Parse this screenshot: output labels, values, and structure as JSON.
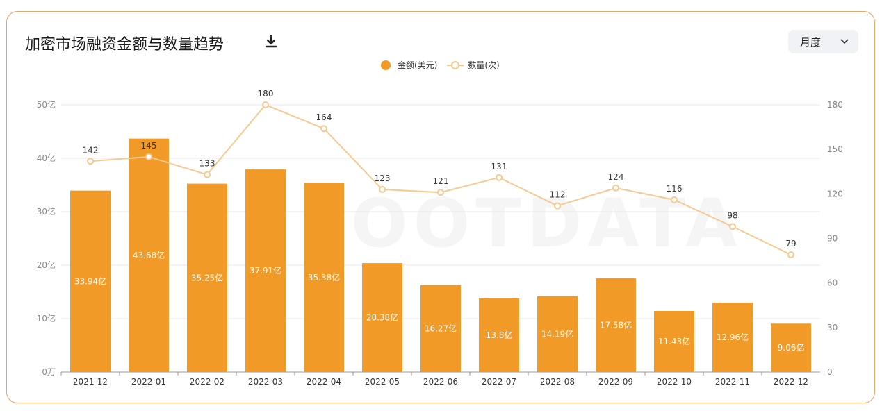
{
  "header": {
    "title": "加密市场融资金额与数量趋势",
    "download_icon": "download-icon",
    "period_select": {
      "value": "月度",
      "icon": "chevron-down-icon"
    }
  },
  "colors": {
    "bar": "#f29a27",
    "line": "#f7c98f",
    "accent": "#f0a060"
  },
  "watermark": "FOOTDATA",
  "chart_data": {
    "type": "bar+line",
    "categories": [
      "2021-12",
      "2022-01",
      "2022-02",
      "2022-03",
      "2022-04",
      "2022-05",
      "2022-06",
      "2022-07",
      "2022-08",
      "2022-09",
      "2022-10",
      "2022-11",
      "2022-12"
    ],
    "series": [
      {
        "name": "金额(美元)",
        "type": "bar",
        "axis": "left",
        "unit": "亿",
        "values": [
          33.94,
          43.68,
          35.25,
          37.91,
          35.38,
          20.38,
          16.27,
          13.8,
          14.19,
          17.58,
          11.43,
          12.96,
          9.06
        ],
        "labels": [
          "33.94亿",
          "43.68亿",
          "35.25亿",
          "37.91亿",
          "35.38亿",
          "20.38亿",
          "16.27亿",
          "13.8亿",
          "14.19亿",
          "17.58亿",
          "11.43亿",
          "12.96亿",
          "9.06亿"
        ]
      },
      {
        "name": "数量(次)",
        "type": "line",
        "axis": "right",
        "values": [
          142,
          145,
          133,
          180,
          164,
          123,
          121,
          131,
          112,
          124,
          116,
          98,
          79
        ],
        "labels": [
          "142",
          "145",
          "133",
          "180",
          "164",
          "123",
          "121",
          "131",
          "112",
          "124",
          "116",
          "98",
          "79"
        ]
      }
    ],
    "left_axis": {
      "range": [
        0,
        50
      ],
      "ticks": [
        "0万",
        "10亿",
        "20亿",
        "30亿",
        "40亿",
        "50亿"
      ]
    },
    "right_axis": {
      "range": [
        0,
        180
      ],
      "ticks": [
        "0",
        "30",
        "60",
        "90",
        "120",
        "150",
        "180"
      ]
    },
    "grid": true,
    "legend": "top-center"
  }
}
